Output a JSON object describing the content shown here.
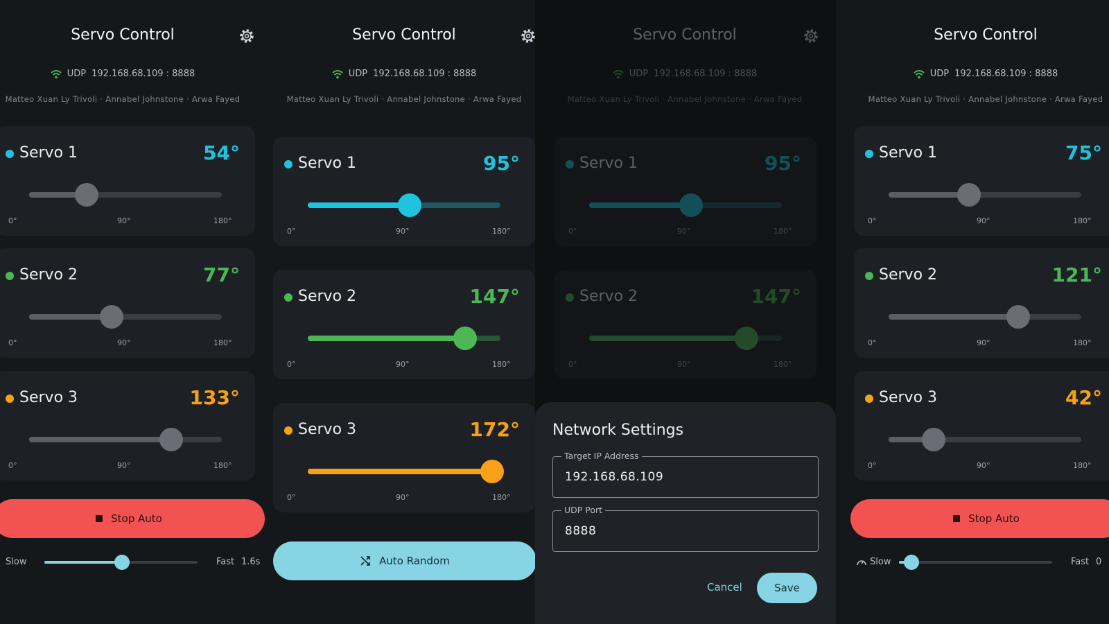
{
  "app_title": "Servo Control",
  "connection": {
    "protocol": "UDP",
    "address": "192.168.68.109 : 8888"
  },
  "credits": "Matteo Xuan Ly Trivoli · Annabel Johnstone · Arwa Fayed",
  "slider_scale": [
    {
      "value": 0,
      "label": "0°"
    },
    {
      "value": 90,
      "label": "90°"
    },
    {
      "value": 180,
      "label": "180°"
    }
  ],
  "panels": [
    {
      "slider_style": "gray",
      "servos": [
        {
          "name": "Servo 1",
          "angle": 54,
          "angle_label": "54°",
          "color": "#1fc3dd"
        },
        {
          "name": "Servo 2",
          "angle": 77,
          "angle_label": "77°",
          "color": "#4cb754"
        },
        {
          "name": "Servo 3",
          "angle": 133,
          "angle_label": "133°",
          "color": "#f6a117"
        }
      ],
      "auto_button": "Stop Auto",
      "speed": {
        "slow": "Slow",
        "fast": "Fast",
        "value": "1.6s"
      }
    },
    {
      "slider_style": "colored",
      "servos": [
        {
          "name": "Servo 1",
          "angle": 95,
          "angle_label": "95°",
          "color": "#1fc3dd"
        },
        {
          "name": "Servo 2",
          "angle": 147,
          "angle_label": "147°",
          "color": "#4cb754"
        },
        {
          "name": "Servo 3",
          "angle": 172,
          "angle_label": "172°",
          "color": "#f6a117"
        }
      ],
      "auto_button": "Auto Random"
    },
    {
      "slider_style": "colored",
      "dimmed": true,
      "servos": [
        {
          "name": "Servo 1",
          "angle": 95,
          "angle_label": "95°",
          "color": "#1fc3dd"
        },
        {
          "name": "Servo 2",
          "angle": 147,
          "angle_label": "147°",
          "color": "#4cb754"
        }
      ]
    },
    {
      "slider_style": "gray",
      "servos": [
        {
          "name": "Servo 1",
          "angle": 75,
          "angle_label": "75°",
          "color": "#1fc3dd"
        },
        {
          "name": "Servo 2",
          "angle": 121,
          "angle_label": "121°",
          "color": "#4cb754"
        },
        {
          "name": "Servo 3",
          "angle": 42,
          "angle_label": "42°",
          "color": "#f6a117"
        }
      ],
      "auto_button": "Stop Auto",
      "speed": {
        "slow": "Slow",
        "fast": "Fast",
        "value": "0"
      }
    }
  ],
  "dialog": {
    "title": "Network Settings",
    "fields": [
      {
        "label": "Target IP Address",
        "value": "192.168.68.109"
      },
      {
        "label": "UDP Port",
        "value": "8888"
      }
    ],
    "cancel": "Cancel",
    "save": "Save"
  }
}
